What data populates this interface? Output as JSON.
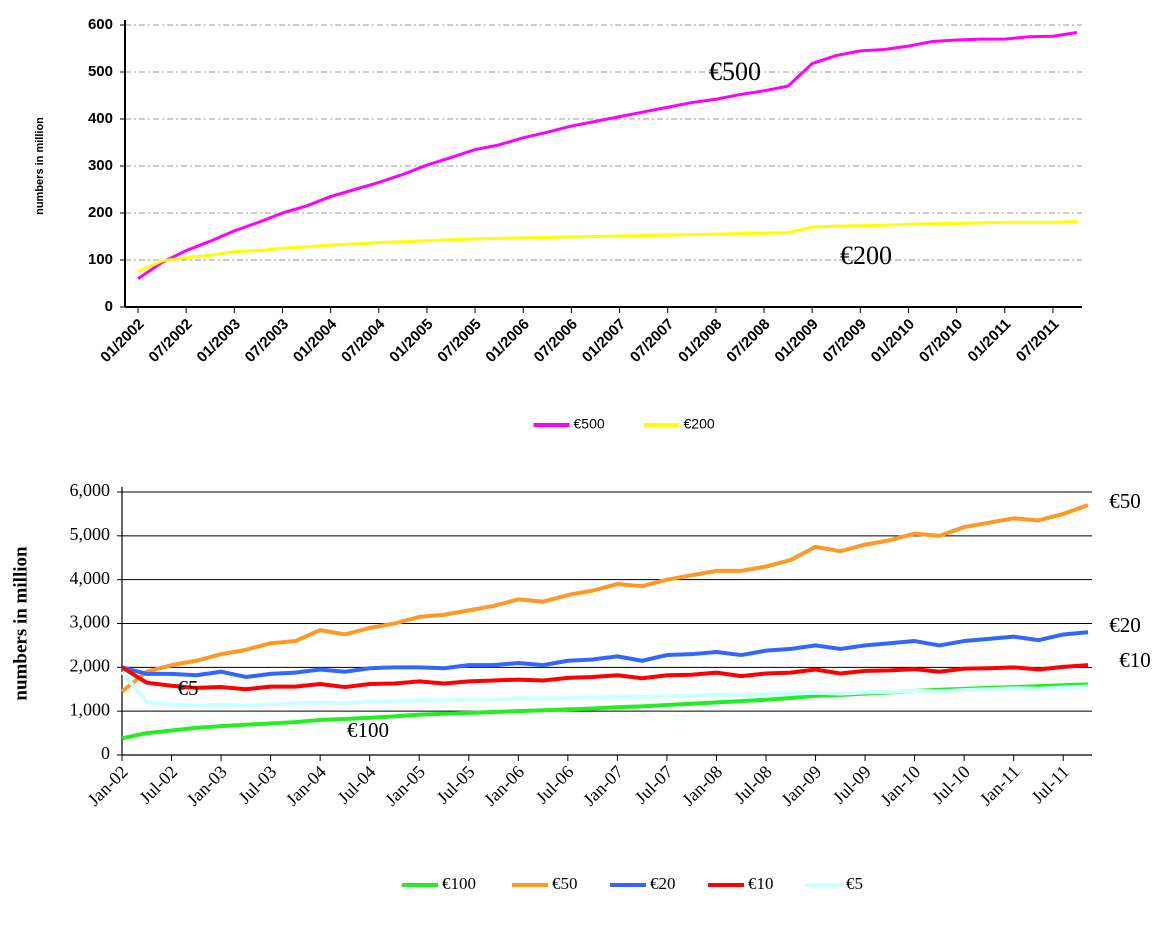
{
  "chart_data": [
    {
      "type": "line",
      "y_label": "numbers in million",
      "grid": true,
      "grid_color": "#999999",
      "categories": [
        "01/2002",
        null,
        "07/2002",
        null,
        "01/2003",
        null,
        "07/2003",
        null,
        "01/2004",
        null,
        "07/2004",
        null,
        "01/2005",
        null,
        "07/2005",
        null,
        "01/2006",
        null,
        "07/2006",
        null,
        "01/2007",
        null,
        "07/2007",
        null,
        "01/2008",
        null,
        "07/2008",
        null,
        "01/2009",
        null,
        "07/2009",
        null,
        "01/2010",
        null,
        "07/2010",
        null,
        "01/2011",
        null,
        "07/2011",
        null
      ],
      "ylim": [
        0,
        600
      ],
      "yticks": [
        0,
        100,
        200,
        300,
        400,
        500,
        600
      ],
      "series": [
        {
          "name": "€500",
          "color": "#ff00ff",
          "values": [
            60,
            95,
            120,
            140,
            162,
            180,
            200,
            215,
            235,
            250,
            265,
            282,
            302,
            318,
            335,
            345,
            360,
            372,
            385,
            395,
            405,
            415,
            425,
            435,
            442,
            452,
            460,
            470,
            518,
            535,
            545,
            548,
            555,
            565,
            568,
            570,
            570,
            575,
            576,
            584
          ]
        },
        {
          "name": "€200",
          "color": "#ffff00",
          "values": [
            75,
            98,
            105,
            110,
            118,
            120,
            125,
            128,
            132,
            134,
            137,
            139,
            141,
            143,
            145,
            146,
            147,
            148,
            149,
            150,
            151,
            152,
            153,
            154,
            155,
            156,
            157,
            158,
            170,
            172,
            173,
            174,
            176,
            177,
            178,
            179,
            180,
            180,
            180,
            182
          ]
        }
      ],
      "annotations": [
        "€500",
        "€200"
      ]
    },
    {
      "type": "line",
      "y_label": "numbers in million",
      "grid": true,
      "grid_color": "#000000",
      "categories": [
        "Jan-02",
        null,
        "Jul-02",
        null,
        "Jan-03",
        null,
        "Jul-03",
        null,
        "Jan-04",
        null,
        "Jul-04",
        null,
        "Jan-05",
        null,
        "Jul-05",
        null,
        "Jan-06",
        null,
        "Jul-06",
        null,
        "Jan-07",
        null,
        "Jul-07",
        null,
        "Jan-08",
        null,
        "Jul-08",
        null,
        "Jan-09",
        null,
        "Jul-09",
        null,
        "Jan-10",
        null,
        "Jul-10",
        null,
        "Jan-11",
        null,
        "Jul-11",
        null
      ],
      "ylim": [
        0,
        6000
      ],
      "yticks": [
        0,
        {
          "value": 1000,
          "label": "1,000"
        },
        {
          "value": 2000,
          "label": "2,000"
        },
        {
          "value": 3000,
          "label": "3,000"
        },
        {
          "value": 4000,
          "label": "4,000"
        },
        {
          "value": 5000,
          "label": "5,000"
        },
        {
          "value": 6000,
          "label": "6,000"
        }
      ],
      "series": [
        {
          "name": "€100",
          "color": "#22ee22",
          "values": [
            380,
            500,
            560,
            620,
            660,
            690,
            720,
            750,
            800,
            820,
            850,
            880,
            920,
            940,
            960,
            980,
            1000,
            1020,
            1040,
            1060,
            1090,
            1110,
            1140,
            1170,
            1200,
            1230,
            1260,
            1300,
            1350,
            1370,
            1400,
            1430,
            1460,
            1490,
            1510,
            1530,
            1550,
            1570,
            1590,
            1610
          ]
        },
        {
          "name": "€50",
          "color": "#ff9922",
          "values": [
            1450,
            1900,
            2050,
            2150,
            2300,
            2400,
            2550,
            2600,
            2850,
            2750,
            2900,
            3000,
            3150,
            3200,
            3300,
            3400,
            3550,
            3500,
            3650,
            3750,
            3900,
            3850,
            4000,
            4100,
            4200,
            4200,
            4300,
            4450,
            4750,
            4650,
            4800,
            4900,
            5050,
            5000,
            5200,
            5300,
            5400,
            5350,
            5500,
            5700
          ]
        },
        {
          "name": "€20",
          "color": "#3366ff",
          "values": [
            2000,
            1850,
            1850,
            1820,
            1900,
            1780,
            1850,
            1880,
            1950,
            1900,
            1980,
            2000,
            2000,
            1980,
            2050,
            2050,
            2100,
            2050,
            2150,
            2180,
            2250,
            2150,
            2280,
            2300,
            2350,
            2280,
            2380,
            2420,
            2500,
            2420,
            2500,
            2550,
            2600,
            2500,
            2600,
            2650,
            2700,
            2620,
            2750,
            2800
          ]
        },
        {
          "name": "€10",
          "color": "#ff0000",
          "values": [
            2000,
            1650,
            1580,
            1530,
            1550,
            1500,
            1560,
            1560,
            1620,
            1550,
            1620,
            1630,
            1680,
            1630,
            1680,
            1700,
            1720,
            1700,
            1760,
            1780,
            1820,
            1750,
            1820,
            1830,
            1880,
            1800,
            1860,
            1880,
            1950,
            1860,
            1920,
            1930,
            1960,
            1900,
            1970,
            1980,
            2000,
            1950,
            2010,
            2050
          ]
        },
        {
          "name": "€5",
          "color": "#ccffff",
          "values": [
            1900,
            1200,
            1150,
            1120,
            1150,
            1120,
            1160,
            1180,
            1200,
            1180,
            1220,
            1230,
            1250,
            1240,
            1260,
            1270,
            1290,
            1280,
            1300,
            1310,
            1330,
            1320,
            1340,
            1350,
            1380,
            1360,
            1380,
            1400,
            1420,
            1400,
            1430,
            1440,
            1460,
            1450,
            1480,
            1500,
            1520,
            1510,
            1540,
            1560
          ]
        }
      ],
      "annotations": [
        "€50",
        "€20",
        "€10",
        "€5",
        "€100"
      ]
    }
  ]
}
